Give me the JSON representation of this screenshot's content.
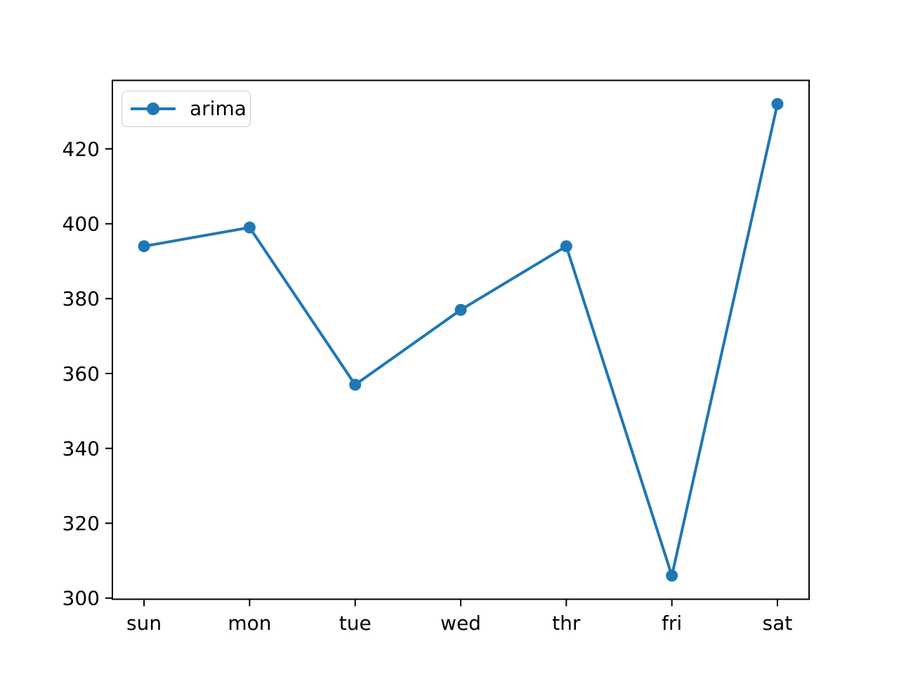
{
  "figure": {
    "background": "#ffffff"
  },
  "chart_data": {
    "type": "line",
    "title": "",
    "categories": [
      "sun",
      "mon",
      "tue",
      "wed",
      "thr",
      "fri",
      "sat"
    ],
    "series": [
      {
        "name": "arima",
        "color": "#1f77b4",
        "marker": "circle",
        "values": [
          394,
          399,
          357,
          377,
          394,
          306,
          432
        ]
      }
    ],
    "xlabel": "",
    "ylabel": "",
    "ylim": [
      299.7,
      438.3
    ],
    "y_ticks": [
      300,
      320,
      340,
      360,
      380,
      400,
      420
    ],
    "x_margin": 0.3,
    "grid": false,
    "legend": {
      "position": "upper-left",
      "entries": [
        "arima"
      ]
    }
  },
  "colors": {
    "line": "#1f77b4",
    "axis": "#000000",
    "tick_label": "#000000",
    "legend_border": "#cccccc"
  }
}
